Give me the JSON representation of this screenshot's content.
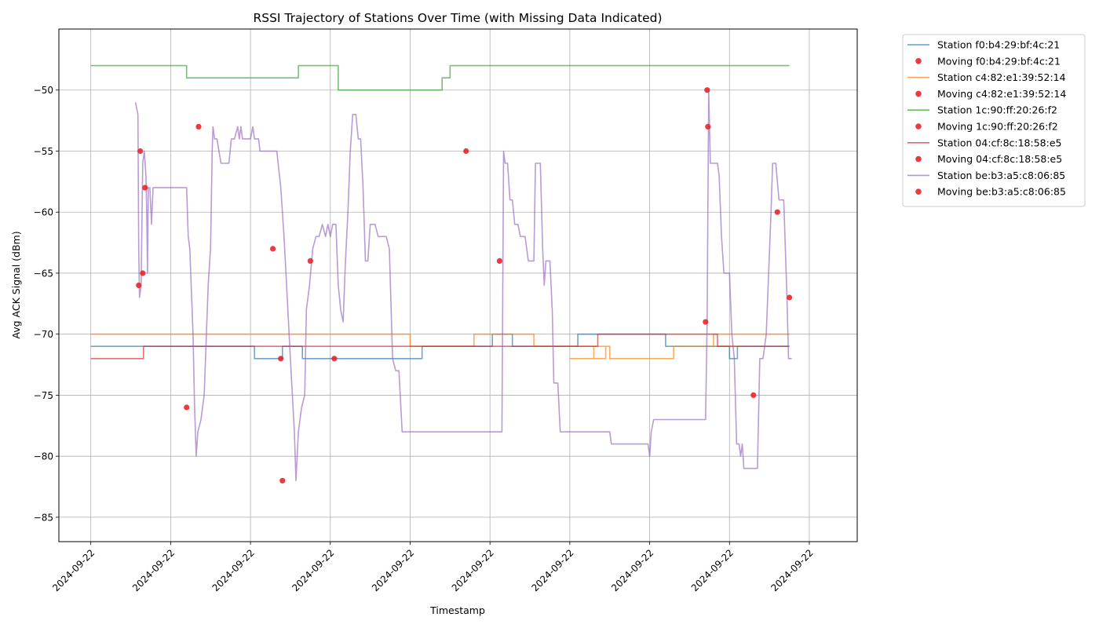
{
  "chart_data": {
    "type": "line",
    "title": "RSSI Trajectory of Stations Over Time (with Missing Data Indicated)",
    "xlabel": "Timestamp",
    "ylabel": "Avg ACK Signal (dBm)",
    "x_tick_labels": [
      "2024-09-22",
      "2024-09-22",
      "2024-09-22",
      "2024-09-22",
      "2024-09-22",
      "2024-09-22",
      "2024-09-22",
      "2024-09-22",
      "2024-09-22",
      "2024-09-22"
    ],
    "y_ticks": [
      -50,
      -55,
      -60,
      -65,
      -70,
      -75,
      -80,
      -85
    ],
    "y_tick_labels": [
      "−50",
      "−55",
      "−60",
      "−65",
      "−70",
      "−75",
      "−80",
      "−85"
    ],
    "xlim": [
      -0.4,
      9.6
    ],
    "ylim": [
      -87,
      -45
    ],
    "grid": true,
    "legend_position": "outside-top-right",
    "marker_color": "#e8262b",
    "series": [
      {
        "name": "Station f0:b4:29:bf:4c:21",
        "moving_name": "Moving f0:b4:29:bf:4c:21",
        "color": "#1f77b4",
        "points": [
          [
            0,
            -71
          ],
          [
            1.04,
            -71
          ],
          [
            1.04,
            -71
          ],
          [
            1.02,
            -71
          ],
          [
            2.05,
            -71
          ],
          [
            2.05,
            -72
          ],
          [
            2.4,
            -72
          ],
          [
            2.4,
            -71
          ],
          [
            2.65,
            -71
          ],
          [
            2.65,
            -72
          ],
          [
            4.15,
            -72
          ],
          [
            4.15,
            -71
          ],
          [
            5.03,
            -71
          ],
          [
            5.03,
            -70
          ],
          [
            5.28,
            -70
          ],
          [
            5.28,
            -71
          ],
          [
            6.1,
            -71
          ],
          [
            6.1,
            -70
          ],
          [
            7.2,
            -70
          ],
          [
            7.2,
            -71
          ],
          [
            8.0,
            -71
          ],
          [
            8.0,
            -72
          ],
          [
            8.1,
            -72
          ],
          [
            8.1,
            -71
          ],
          [
            8.75,
            -71
          ]
        ],
        "moving": []
      },
      {
        "name": "Station c4:82:e1:39:52:14",
        "moving_name": "Moving c4:82:e1:39:52:14",
        "color": "#ff7f0e",
        "points": [
          [
            0,
            -70
          ],
          [
            4.0,
            -70
          ],
          [
            4.0,
            -71
          ],
          [
            4.8,
            -71
          ],
          [
            4.8,
            -70
          ],
          [
            5.55,
            -70
          ],
          [
            5.55,
            -71
          ],
          [
            6.45,
            -71
          ],
          [
            6.45,
            -72
          ],
          [
            6.0,
            -72
          ],
          [
            6.3,
            -72
          ],
          [
            6.3,
            -71
          ],
          [
            6.5,
            -71
          ],
          [
            6.5,
            -72
          ],
          [
            7.3,
            -72
          ],
          [
            7.3,
            -71
          ],
          [
            8.1,
            -71
          ],
          [
            8.1,
            -71
          ],
          [
            7.8,
            -71
          ],
          [
            7.8,
            -70
          ],
          [
            8.75,
            -70
          ]
        ],
        "moving": []
      },
      {
        "name": "Station 1c:90:ff:20:26:f2",
        "moving_name": "Moving 1c:90:ff:20:26:f2",
        "color": "#2ca02c",
        "points": [
          [
            0,
            -48
          ],
          [
            1.2,
            -48
          ],
          [
            1.2,
            -49
          ],
          [
            2.6,
            -49
          ],
          [
            2.6,
            -48
          ],
          [
            3.1,
            -48
          ],
          [
            3.1,
            -50
          ],
          [
            4.4,
            -50
          ],
          [
            4.4,
            -49
          ],
          [
            4.5,
            -49
          ],
          [
            4.5,
            -48
          ],
          [
            8.75,
            -48
          ]
        ],
        "moving": []
      },
      {
        "name": "Station 04:cf:8c:18:58:e5",
        "moving_name": "Moving 04:cf:8c:18:58:e5",
        "color": "#d62728",
        "points": [
          [
            0,
            -72
          ],
          [
            0.66,
            -72
          ],
          [
            0.66,
            -71
          ],
          [
            6.35,
            -71
          ],
          [
            6.35,
            -70
          ],
          [
            7.85,
            -70
          ],
          [
            7.85,
            -71
          ],
          [
            8.75,
            -71
          ]
        ],
        "moving": []
      },
      {
        "name": "Station be:b3:a5:c8:06:85",
        "moving_name": "Moving be:b3:a5:c8:06:85",
        "color": "#9467bd",
        "points": [
          [
            0.56,
            -51
          ],
          [
            0.59,
            -52
          ],
          [
            0.6,
            -63
          ],
          [
            0.61,
            -67
          ],
          [
            0.63,
            -66
          ],
          [
            0.65,
            -56
          ],
          [
            0.67,
            -55
          ],
          [
            0.69,
            -57
          ],
          [
            0.7,
            -60
          ],
          [
            0.71,
            -65
          ],
          [
            0.72,
            -58
          ],
          [
            0.74,
            -58
          ],
          [
            0.76,
            -61
          ],
          [
            0.78,
            -58
          ],
          [
            1.2,
            -58
          ],
          [
            1.22,
            -62
          ],
          [
            1.24,
            -63
          ],
          [
            1.28,
            -70
          ],
          [
            1.3,
            -76
          ],
          [
            1.32,
            -80
          ],
          [
            1.34,
            -78
          ],
          [
            1.38,
            -77
          ],
          [
            1.42,
            -75
          ],
          [
            1.47,
            -66
          ],
          [
            1.5,
            -63
          ],
          [
            1.52,
            -55
          ],
          [
            1.53,
            -53
          ],
          [
            1.55,
            -54
          ],
          [
            1.58,
            -54
          ],
          [
            1.63,
            -56
          ],
          [
            1.73,
            -56
          ],
          [
            1.76,
            -54
          ],
          [
            1.8,
            -54
          ],
          [
            1.84,
            -53
          ],
          [
            1.86,
            -54
          ],
          [
            1.88,
            -53
          ],
          [
            1.9,
            -54
          ],
          [
            2.0,
            -54
          ],
          [
            2.03,
            -53
          ],
          [
            2.05,
            -54
          ],
          [
            2.1,
            -54
          ],
          [
            2.12,
            -55
          ],
          [
            2.2,
            -55
          ],
          [
            2.33,
            -55
          ],
          [
            2.38,
            -58
          ],
          [
            2.42,
            -62
          ],
          [
            2.46,
            -67
          ],
          [
            2.5,
            -72
          ],
          [
            2.55,
            -78
          ],
          [
            2.57,
            -82
          ],
          [
            2.6,
            -78
          ],
          [
            2.64,
            -76
          ],
          [
            2.68,
            -75
          ],
          [
            2.7,
            -68
          ],
          [
            2.74,
            -66
          ],
          [
            2.78,
            -63
          ],
          [
            2.82,
            -62
          ],
          [
            2.86,
            -62
          ],
          [
            2.9,
            -61
          ],
          [
            2.94,
            -62
          ],
          [
            2.97,
            -61
          ],
          [
            3.0,
            -62
          ],
          [
            3.03,
            -61
          ],
          [
            3.07,
            -61
          ],
          [
            3.1,
            -66
          ],
          [
            3.13,
            -68
          ],
          [
            3.16,
            -69
          ],
          [
            3.19,
            -64
          ],
          [
            3.22,
            -60
          ],
          [
            3.25,
            -55
          ],
          [
            3.28,
            -52
          ],
          [
            3.32,
            -52
          ],
          [
            3.35,
            -54
          ],
          [
            3.38,
            -54
          ],
          [
            3.41,
            -58
          ],
          [
            3.44,
            -64
          ],
          [
            3.47,
            -64
          ],
          [
            3.5,
            -61
          ],
          [
            3.56,
            -61
          ],
          [
            3.6,
            -62
          ],
          [
            3.7,
            -62
          ],
          [
            3.74,
            -63
          ],
          [
            3.78,
            -72
          ],
          [
            3.82,
            -73
          ],
          [
            3.86,
            -73
          ],
          [
            3.9,
            -78
          ],
          [
            5.15,
            -78
          ],
          [
            5.17,
            -55
          ],
          [
            5.19,
            -56
          ],
          [
            5.22,
            -56
          ],
          [
            5.25,
            -59
          ],
          [
            5.28,
            -59
          ],
          [
            5.31,
            -61
          ],
          [
            5.35,
            -61
          ],
          [
            5.38,
            -62
          ],
          [
            5.44,
            -62
          ],
          [
            5.48,
            -64
          ],
          [
            5.55,
            -64
          ],
          [
            5.57,
            -56
          ],
          [
            5.63,
            -56
          ],
          [
            5.66,
            -63
          ],
          [
            5.68,
            -66
          ],
          [
            5.7,
            -64
          ],
          [
            5.75,
            -64
          ],
          [
            5.78,
            -68
          ],
          [
            5.8,
            -74
          ],
          [
            5.85,
            -74
          ],
          [
            5.88,
            -78
          ],
          [
            6.5,
            -78
          ],
          [
            6.52,
            -79
          ],
          [
            6.7,
            -79
          ],
          [
            6.98,
            -79
          ],
          [
            7.0,
            -80
          ],
          [
            7.02,
            -78
          ],
          [
            7.05,
            -77
          ],
          [
            7.1,
            -77
          ],
          [
            7.7,
            -77
          ],
          [
            7.72,
            -69
          ],
          [
            7.74,
            -50
          ],
          [
            7.76,
            -56
          ],
          [
            7.85,
            -56
          ],
          [
            7.87,
            -57
          ],
          [
            7.9,
            -62
          ],
          [
            7.93,
            -65
          ],
          [
            8.0,
            -65
          ],
          [
            8.03,
            -70
          ],
          [
            8.06,
            -72
          ],
          [
            8.09,
            -79
          ],
          [
            8.12,
            -79
          ],
          [
            8.14,
            -80
          ],
          [
            8.16,
            -79
          ],
          [
            8.18,
            -81
          ],
          [
            8.35,
            -81
          ],
          [
            8.38,
            -72
          ],
          [
            8.42,
            -72
          ],
          [
            8.46,
            -70
          ],
          [
            8.52,
            -60
          ],
          [
            8.54,
            -56
          ],
          [
            8.58,
            -56
          ],
          [
            8.62,
            -59
          ],
          [
            8.68,
            -59
          ],
          [
            8.72,
            -67
          ],
          [
            8.74,
            -72
          ],
          [
            8.78,
            -72
          ]
        ],
        "moving": [
          [
            0.6,
            -66
          ],
          [
            0.62,
            -55
          ],
          [
            0.65,
            -65
          ],
          [
            0.68,
            -58
          ],
          [
            1.2,
            -76
          ],
          [
            1.35,
            -53
          ],
          [
            2.28,
            -63
          ],
          [
            2.38,
            -72
          ],
          [
            2.4,
            -82
          ],
          [
            2.75,
            -64
          ],
          [
            3.05,
            -72
          ],
          [
            4.7,
            -55
          ],
          [
            5.12,
            -64
          ],
          [
            7.7,
            -69
          ],
          [
            7.72,
            -50
          ],
          [
            7.73,
            -53
          ],
          [
            8.3,
            -75
          ],
          [
            8.6,
            -60
          ],
          [
            8.75,
            -67
          ]
        ]
      }
    ]
  }
}
